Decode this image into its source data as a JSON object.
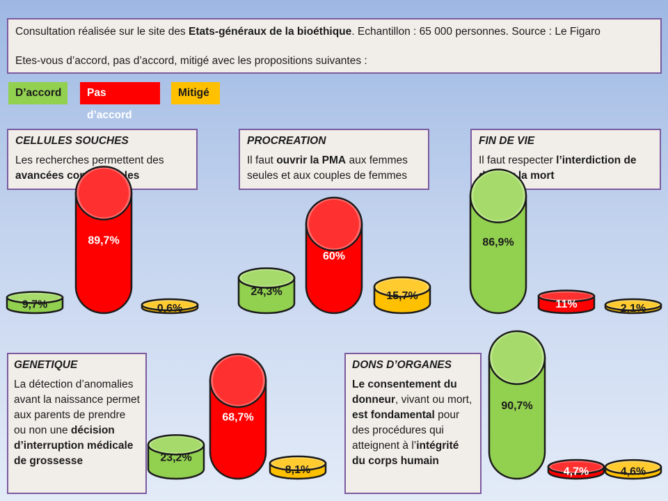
{
  "header": {
    "line1_pre": "Consultation réalisée sur le site des ",
    "line1_bold": "Etats-généraux de la bioéthique",
    "line1_post": ". Echantillon : 65 000 personnes. Source : Le Figaro",
    "line2": "Etes-vous d’accord, pas d’accord, mitigé avec les propositions suivantes :"
  },
  "legend": [
    {
      "label": "D’accord",
      "color": "#92d050",
      "text_color": "#1a1a1a"
    },
    {
      "label": "Pas d’accord",
      "color": "#ff0000",
      "text_color": "#ffffff"
    },
    {
      "label": "Mitigé",
      "color": "#ffc000",
      "text_color": "#1a1a1a"
    }
  ],
  "panels": {
    "cellules": {
      "category": "CELLULES SOUCHES",
      "t1": "Les recherches permettent des ",
      "b1": "avancées considérables"
    },
    "procreation": {
      "category": "PROCREATION",
      "t1": "Il faut ",
      "b1": "ouvrir la PMA",
      "t2": " aux femmes seules et aux couples de femmes"
    },
    "findevie": {
      "category": "FIN DE VIE",
      "t1": "Il faut respecter ",
      "b1": "l’interdiction de donner la mort"
    },
    "genetique": {
      "category": "GENETIQUE",
      "t1": "La détection d’anomalies avant la naissance permet aux parents de prendre ou non une ",
      "b1": "décision d’interruption médicale de grossesse"
    },
    "dons": {
      "category": "DONS D’ORGANES",
      "b1": "Le consentement du donneur",
      "t1": ", vivant ou mort, ",
      "b2": "est fondamental",
      "t2": " pour des procédures qui atteignent à l’",
      "b3": "intégrité du corps humain"
    }
  },
  "chart_data": [
    {
      "type": "bar",
      "group": "CELLULES SOUCHES",
      "categories": [
        "D’accord",
        "Pas d’accord",
        "Mitigé"
      ],
      "values": [
        9.7,
        89.7,
        0.6
      ],
      "labels": [
        "9,7%",
        "89,7%",
        "0,6%"
      ]
    },
    {
      "type": "bar",
      "group": "PROCREATION",
      "categories": [
        "D’accord",
        "Pas d’accord",
        "Mitigé"
      ],
      "values": [
        24.3,
        60,
        15.7
      ],
      "labels": [
        "24,3%",
        "60%",
        "15,7%"
      ]
    },
    {
      "type": "bar",
      "group": "FIN DE VIE",
      "categories": [
        "D’accord",
        "Pas d’accord",
        "Mitigé"
      ],
      "values": [
        86.9,
        11,
        2.1
      ],
      "labels": [
        "86,9%",
        "11%",
        "2,1%"
      ]
    },
    {
      "type": "bar",
      "group": "GENETIQUE",
      "categories": [
        "D’accord",
        "Pas d’accord",
        "Mitigé"
      ],
      "values": [
        23.2,
        68.7,
        8.1
      ],
      "labels": [
        "23,2%",
        "68,7%",
        "8,1%"
      ]
    },
    {
      "type": "bar",
      "group": "DONS D’ORGANES",
      "categories": [
        "D’accord",
        "Pas d’accord",
        "Mitigé"
      ],
      "values": [
        90.7,
        4.7,
        4.6
      ],
      "labels": [
        "90,7%",
        "4,7%",
        "4,6%"
      ]
    }
  ]
}
